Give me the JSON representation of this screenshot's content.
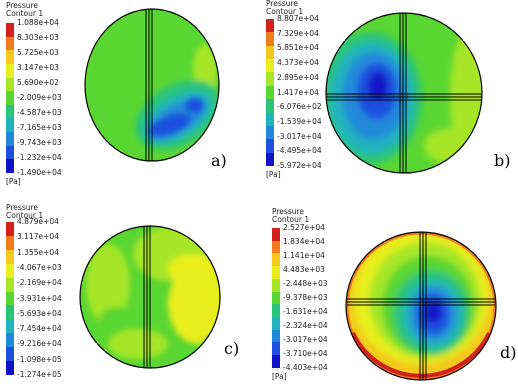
{
  "chart_data": [
    {
      "type": "heatmap",
      "panel_label": "a)",
      "legend_title": [
        "Pressure",
        "Contour 1"
      ],
      "unit": "[Pa]",
      "tick_labels": [
        "1.088e+04",
        "8.303e+03",
        "5.725e+03",
        "3.147e+03",
        "5.690e+02",
        "-2.009e+03",
        "-4.587e+03",
        "-7.165e+03",
        "-9.743e+03",
        "-1.232e+04",
        "-1.490e+04"
      ],
      "range": [
        -14900,
        10880
      ],
      "colors": [
        "#d3201b",
        "#f07a1c",
        "#f4c81c",
        "#e8ee1e",
        "#a6e627",
        "#5ad632",
        "#29c47a",
        "#21b4bd",
        "#2089da",
        "#1f4fe0",
        "#1212c8"
      ]
    },
    {
      "type": "heatmap",
      "panel_label": "b)",
      "legend_title": [
        "Pressure",
        "Contour 1"
      ],
      "unit": "[Pa]",
      "tick_labels": [
        "8.807e+04",
        "7.329e+04",
        "5.851e+04",
        "4.373e+04",
        "2.895e+04",
        "1.417e+04",
        "-6.076e+02",
        "-1.539e+04",
        "-3.017e+04",
        "-4.495e+04",
        "-5.972e+04"
      ],
      "range": [
        -59720,
        88070
      ],
      "colors": [
        "#d3201b",
        "#f07a1c",
        "#f4c81c",
        "#e8ee1e",
        "#a6e627",
        "#5ad632",
        "#29c47a",
        "#21b4bd",
        "#2089da",
        "#1f4fe0",
        "#1212c8"
      ]
    },
    {
      "type": "heatmap",
      "panel_label": "c)",
      "legend_title": [
        "Pressure",
        "Contour 1"
      ],
      "unit": "",
      "tick_labels": [
        "4.879e+04",
        "3.117e+04",
        "1.355e+04",
        "-4.067e+03",
        "-2.169e+04",
        "-3.931e+04",
        "-5.693e+04",
        "-7.454e+04",
        "-9.216e+04",
        "-1.098e+05",
        "-1.274e+05"
      ],
      "range": [
        -127400,
        48790
      ],
      "colors": [
        "#d3201b",
        "#f07a1c",
        "#f4c81c",
        "#e8ee1e",
        "#a6e627",
        "#5ad632",
        "#29c47a",
        "#21b4bd",
        "#2089da",
        "#1f4fe0",
        "#1212c8"
      ]
    },
    {
      "type": "heatmap",
      "panel_label": "d)",
      "legend_title": [
        "Pressure",
        "Contour 1"
      ],
      "unit": "[Pa]",
      "tick_labels": [
        "2.527e+04",
        "1.834e+04",
        "1.141e+04",
        "4.483e+03",
        "-2.448e+03",
        "-9.378e+03",
        "-1.631e+04",
        "-2.324e+04",
        "-3.017e+04",
        "-3.710e+04",
        "-4.403e+04"
      ],
      "range": [
        -44030,
        25270
      ],
      "colors": [
        "#d3201b",
        "#f07a1c",
        "#f4c81c",
        "#e8ee1e",
        "#a6e627",
        "#5ad632",
        "#29c47a",
        "#21b4bd",
        "#2089da",
        "#1f4fe0",
        "#1212c8"
      ]
    }
  ]
}
